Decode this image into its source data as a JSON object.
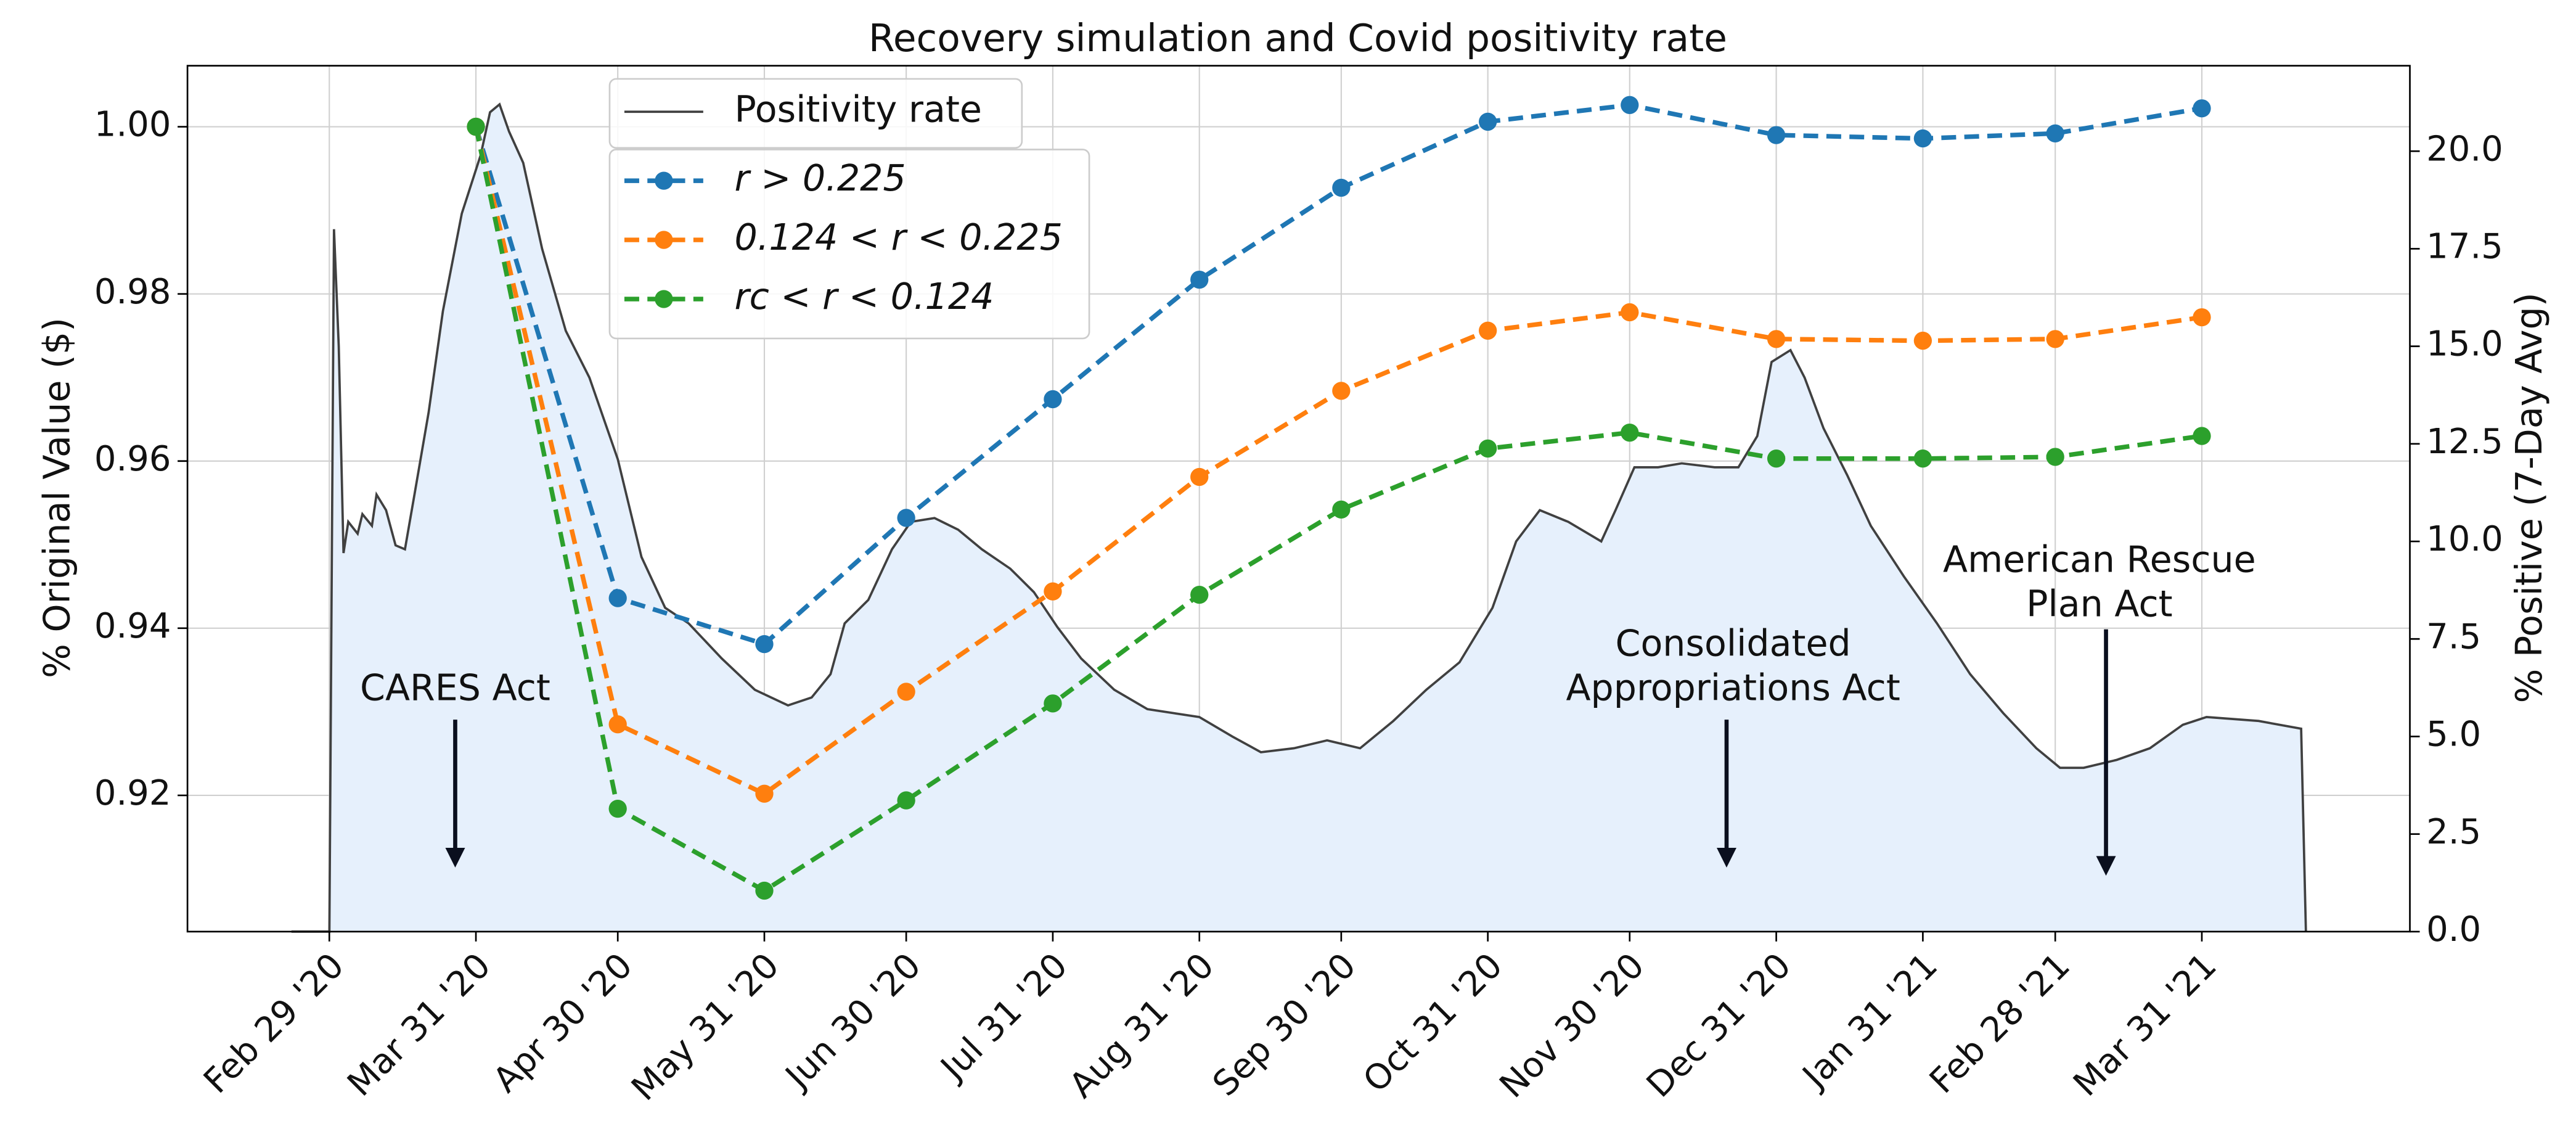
{
  "chart_data": {
    "type": "line",
    "title": "Recovery simulation and Covid positivity rate",
    "ylabel": "% Original Value ($)",
    "y2label": "% Positive (7-Day Avg)",
    "xlim": [
      "2020-01-30",
      "2021-05-14"
    ],
    "xticks": [
      {
        "value": "2020-02-29",
        "label": "Feb 29 '20"
      },
      {
        "value": "2020-03-31",
        "label": "Mar 31 '20"
      },
      {
        "value": "2020-04-30",
        "label": "Apr 30 '20"
      },
      {
        "value": "2020-05-31",
        "label": "May 31 '20"
      },
      {
        "value": "2020-06-30",
        "label": "Jun 30 '20"
      },
      {
        "value": "2020-07-31",
        "label": "Jul 31 '20"
      },
      {
        "value": "2020-08-31",
        "label": "Aug 31 '20"
      },
      {
        "value": "2020-09-30",
        "label": "Sep 30 '20"
      },
      {
        "value": "2020-10-31",
        "label": "Oct 31 '20"
      },
      {
        "value": "2020-11-30",
        "label": "Nov 30 '20"
      },
      {
        "value": "2020-12-31",
        "label": "Dec 31 '20"
      },
      {
        "value": "2021-01-31",
        "label": "Jan 31 '21"
      },
      {
        "value": "2021-02-28",
        "label": "Feb 28 '21"
      },
      {
        "value": "2021-03-31",
        "label": "Mar 31 '21"
      }
    ],
    "ylim": [
      0.9037,
      1.0073
    ],
    "yticks": [
      0.92,
      0.94,
      0.96,
      0.98,
      {
        "value": 1,
        "label": "1.00"
      }
    ],
    "y2lim": [
      0,
      22.19
    ],
    "y2ticks": [
      {
        "value": 0,
        "label": "0.0"
      },
      2.5,
      {
        "value": 5,
        "label": "5.0"
      },
      7.5,
      {
        "value": 10,
        "label": "10.0"
      },
      12.5,
      {
        "value": 15,
        "label": "15.0"
      },
      17.5,
      {
        "value": 20,
        "label": "20.0"
      }
    ],
    "grid": true,
    "x": [
      "2020-03-31",
      "2020-04-30",
      "2020-05-31",
      "2020-06-30",
      "2020-07-31",
      "2020-08-31",
      "2020-09-30",
      "2020-10-31",
      "2020-11-30",
      "2020-12-31",
      "2021-01-31",
      "2021-02-28",
      "2021-03-31"
    ],
    "series": [
      {
        "name": "Positivity rate",
        "color": "#404040",
        "fill": "#e6f0fc",
        "axis": "y2",
        "x": [
          "2020-02-21",
          "2020-02-29",
          "2020-03-01",
          "2020-03-02",
          "2020-03-03",
          "2020-03-04",
          "2020-03-06",
          "2020-03-07",
          "2020-03-09",
          "2020-03-10",
          "2020-03-12",
          "2020-03-14",
          "2020-03-16",
          "2020-03-18",
          "2020-03-21",
          "2020-03-24",
          "2020-03-28",
          "2020-04-01",
          "2020-04-03",
          "2020-04-05",
          "2020-04-07",
          "2020-04-10",
          "2020-04-14",
          "2020-04-19",
          "2020-04-24",
          "2020-04-30",
          "2020-05-05",
          "2020-05-10",
          "2020-05-15",
          "2020-05-22",
          "2020-05-29",
          "2020-06-05",
          "2020-06-10",
          "2020-06-14",
          "2020-06-17",
          "2020-06-22",
          "2020-06-27",
          "2020-07-01",
          "2020-07-06",
          "2020-07-11",
          "2020-07-16",
          "2020-07-22",
          "2020-07-27",
          "2020-08-01",
          "2020-08-06",
          "2020-08-13",
          "2020-08-20",
          "2020-08-31",
          "2020-09-07",
          "2020-09-13",
          "2020-09-20",
          "2020-09-27",
          "2020-10-04",
          "2020-10-11",
          "2020-10-18",
          "2020-10-25",
          "2020-11-01",
          "2020-11-06",
          "2020-11-11",
          "2020-11-17",
          "2020-11-24",
          "2020-11-27",
          "2020-12-01",
          "2020-12-06",
          "2020-12-11",
          "2020-12-18",
          "2020-12-23",
          "2020-12-27",
          "2020-12-30",
          "2021-01-03",
          "2021-01-06",
          "2021-01-10",
          "2021-01-15",
          "2021-01-20",
          "2021-01-27",
          "2021-02-03",
          "2021-02-10",
          "2021-02-17",
          "2021-02-24",
          "2021-03-01",
          "2021-03-06",
          "2021-03-13",
          "2021-03-20",
          "2021-03-27",
          "2021-04-01",
          "2021-04-12",
          "2021-04-21",
          "2021-04-22"
        ],
        "values": [
          0,
          0,
          18.0,
          15.0,
          9.7,
          10.5,
          10.2,
          10.7,
          10.4,
          11.2,
          10.8,
          9.9,
          9.8,
          11.2,
          13.3,
          15.9,
          18.4,
          19.9,
          21.0,
          21.2,
          20.5,
          19.7,
          17.5,
          15.4,
          14.2,
          12.1,
          9.6,
          8.3,
          7.9,
          7.0,
          6.2,
          5.8,
          6.0,
          6.6,
          7.9,
          8.5,
          9.8,
          10.5,
          10.6,
          10.3,
          9.8,
          9.3,
          8.7,
          7.8,
          7.0,
          6.2,
          5.7,
          5.5,
          5.0,
          4.6,
          4.7,
          4.9,
          4.7,
          5.4,
          6.2,
          6.9,
          8.3,
          10.0,
          10.8,
          10.5,
          10.0,
          10.8,
          11.9,
          11.9,
          12.0,
          11.9,
          11.9,
          12.7,
          14.6,
          14.9,
          14.2,
          12.9,
          11.7,
          10.4,
          9.1,
          7.9,
          6.6,
          5.6,
          4.7,
          4.2,
          4.2,
          4.4,
          4.7,
          5.3,
          5.5,
          5.4,
          5.2,
          0
        ]
      },
      {
        "name": "r > 0.225",
        "color": "#1f77b4",
        "values": [
          1.0,
          0.9436,
          0.9381,
          0.9532,
          0.9674,
          0.9817,
          0.9927,
          1.0006,
          1.0026,
          0.999,
          0.9986,
          0.9992,
          1.0022
        ]
      },
      {
        "name": "0.124 < r < 0.225",
        "color": "#ff7f0e",
        "values": [
          1.0,
          0.9285,
          0.9202,
          0.9324,
          0.9444,
          0.9581,
          0.9684,
          0.9756,
          0.9778,
          0.9746,
          0.9744,
          0.9746,
          0.9772
        ]
      },
      {
        "name": "rc < r < 0.124",
        "color": "#2ca02c",
        "values": [
          1.0,
          0.9184,
          0.9086,
          0.9194,
          0.931,
          0.944,
          0.9542,
          0.9615,
          0.9634,
          0.9603,
          0.9603,
          0.9605,
          0.963
        ]
      }
    ],
    "annotations": [
      {
        "text": [
          "CARES Act"
        ]
      },
      {
        "text": [
          "Consolidated",
          "Appropriations Act"
        ]
      },
      {
        "text": [
          "American Rescue",
          "Plan Act"
        ]
      }
    ]
  }
}
